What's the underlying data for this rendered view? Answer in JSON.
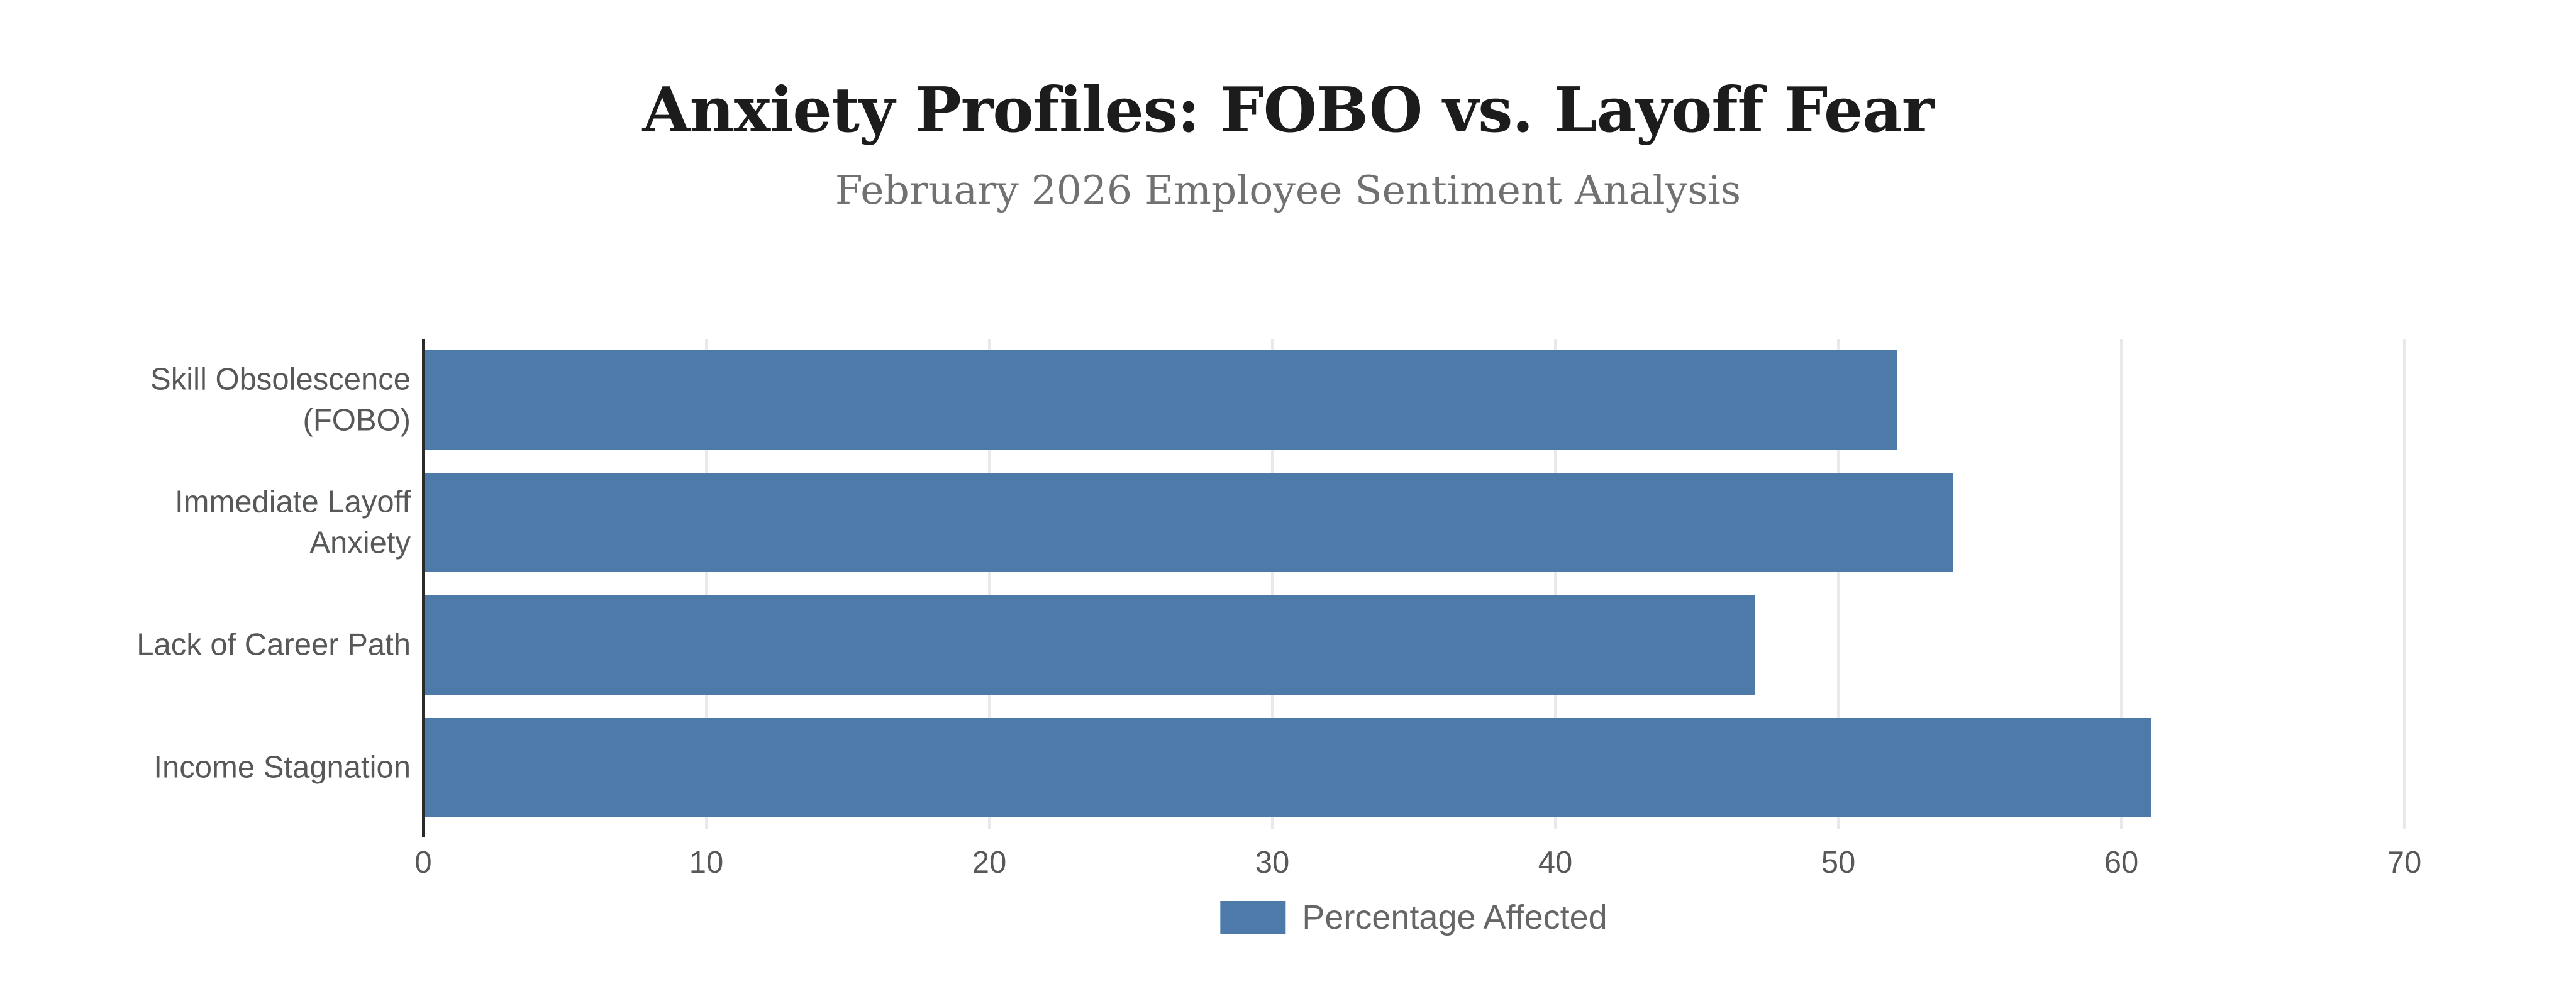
{
  "chart_data": {
    "type": "bar",
    "orientation": "horizontal",
    "title": "Anxiety Profiles: FOBO vs. Layoff Fear",
    "subtitle": "February 2026 Employee Sentiment Analysis",
    "categories": [
      "Skill Obsolescence (FOBO)",
      "Immediate Layoff Anxiety",
      "Lack of Career Path",
      "Income Stagnation"
    ],
    "category_display_lines": [
      [
        "Skill Obsolescence",
        "(FOBO)"
      ],
      [
        "Immediate Layoff",
        "Anxiety"
      ],
      [
        "Lack of Career Path"
      ],
      [
        "Income Stagnation"
      ]
    ],
    "series": [
      {
        "name": "Percentage Affected",
        "values": [
          52,
          54,
          47,
          61
        ]
      }
    ],
    "xlabel": "",
    "ylabel": "",
    "xlim": [
      0,
      70
    ],
    "x_ticks": [
      0,
      10,
      20,
      30,
      40,
      50,
      60,
      70
    ],
    "grid": "vertical-gridlines-only",
    "legend_position": "bottom-center",
    "colors": {
      "bar": "#4d7aa8",
      "grid_line": "#e9e9ec",
      "axis_line": "#2a2a2a",
      "title_text": "#1c1c1c",
      "subtitle_text": "#717171",
      "axis_text": "#57585a",
      "legend_text": "#666666",
      "background": "#ffffff"
    }
  }
}
